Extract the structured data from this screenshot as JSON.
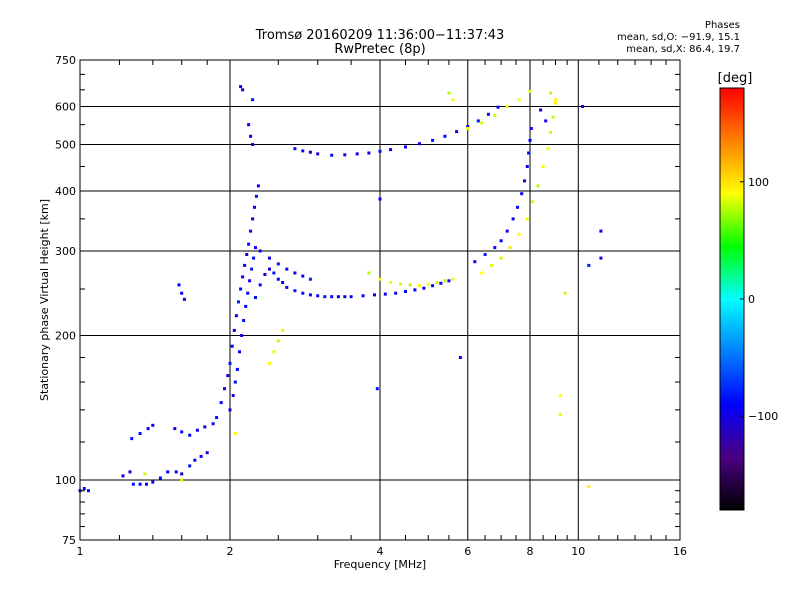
{
  "header": {
    "title": "Tromsø 20160209 11:36:00−11:37:43",
    "subtitle": "RwPretec (8p)"
  },
  "phase_stats": {
    "heading": "Phases",
    "line_o": "mean, sd,O: −91.9, 15.1",
    "line_x": "mean, sd,X:  86.4, 19.7"
  },
  "colorbar": {
    "label": "[deg]",
    "ticks": [
      "100",
      "0",
      "−100"
    ]
  },
  "chart_data": {
    "type": "scatter",
    "title": "Tromsø 20160209 11:36:00−11:37:43",
    "subtitle": "RwPretec (8p)",
    "xlabel": "Frequency [MHz]",
    "ylabel": "Stationary phase Virtual Height [km]",
    "x_scale": "log",
    "y_scale": "log",
    "xlim": [
      1,
      16
    ],
    "ylim": [
      75,
      750
    ],
    "x_ticks": [
      1,
      2,
      4,
      6,
      8,
      10,
      16
    ],
    "x_tick_labels": [
      "1",
      "2",
      "4",
      "6",
      "8",
      "10",
      "16"
    ],
    "y_ticks": [
      75,
      100,
      200,
      300,
      400,
      500,
      600,
      750
    ],
    "y_tick_labels": [
      "75",
      "100",
      "200",
      "300",
      "400",
      "500",
      "600",
      "750"
    ],
    "grid": true,
    "color_scale": {
      "quantity": "phase",
      "unit": "deg",
      "range": [
        -180,
        180
      ],
      "tick_values": [
        100,
        0,
        -100
      ],
      "stops": [
        "#000000",
        "#4b0082",
        "#0000ff",
        "#0080ff",
        "#00ffff",
        "#00ff00",
        "#ffff00",
        "#ff8000",
        "#ff0000"
      ]
    },
    "series": [
      {
        "mode": "O",
        "color_phase": -92,
        "points": [
          [
            1.0,
            95
          ],
          [
            1.02,
            96
          ],
          [
            1.04,
            95
          ],
          [
            1.22,
            102
          ],
          [
            1.26,
            104
          ],
          [
            1.28,
            98
          ],
          [
            1.32,
            98
          ],
          [
            1.36,
            98
          ],
          [
            1.4,
            99
          ],
          [
            1.45,
            101
          ],
          [
            1.5,
            104
          ],
          [
            1.56,
            104
          ],
          [
            1.6,
            103
          ],
          [
            1.66,
            107
          ],
          [
            1.7,
            110
          ],
          [
            1.75,
            112
          ],
          [
            1.8,
            114
          ],
          [
            1.27,
            122
          ],
          [
            1.32,
            125
          ],
          [
            1.37,
            128
          ],
          [
            1.4,
            130
          ],
          [
            1.55,
            128
          ],
          [
            1.6,
            126
          ],
          [
            1.66,
            124
          ],
          [
            1.72,
            127
          ],
          [
            1.78,
            129
          ],
          [
            1.85,
            131
          ],
          [
            1.58,
            255
          ],
          [
            1.6,
            245
          ],
          [
            1.62,
            238
          ],
          [
            1.88,
            135
          ],
          [
            1.92,
            145
          ],
          [
            1.95,
            155
          ],
          [
            1.98,
            165
          ],
          [
            2.0,
            175
          ],
          [
            2.02,
            190
          ],
          [
            2.04,
            205
          ],
          [
            2.06,
            220
          ],
          [
            2.08,
            235
          ],
          [
            2.1,
            250
          ],
          [
            2.12,
            265
          ],
          [
            2.14,
            280
          ],
          [
            2.16,
            295
          ],
          [
            2.18,
            310
          ],
          [
            2.2,
            330
          ],
          [
            2.22,
            350
          ],
          [
            2.24,
            370
          ],
          [
            2.26,
            390
          ],
          [
            2.28,
            410
          ],
          [
            2.0,
            140
          ],
          [
            2.03,
            150
          ],
          [
            2.05,
            160
          ],
          [
            2.07,
            170
          ],
          [
            2.09,
            185
          ],
          [
            2.11,
            200
          ],
          [
            2.13,
            215
          ],
          [
            2.15,
            230
          ],
          [
            2.17,
            245
          ],
          [
            2.19,
            260
          ],
          [
            2.21,
            275
          ],
          [
            2.23,
            290
          ],
          [
            2.25,
            305
          ],
          [
            2.1,
            660
          ],
          [
            2.12,
            650
          ],
          [
            2.22,
            620
          ],
          [
            2.18,
            550
          ],
          [
            2.2,
            520
          ],
          [
            2.22,
            500
          ],
          [
            2.25,
            240
          ],
          [
            2.3,
            255
          ],
          [
            2.35,
            268
          ],
          [
            2.4,
            275
          ],
          [
            2.45,
            270
          ],
          [
            2.5,
            262
          ],
          [
            2.55,
            258
          ],
          [
            2.6,
            252
          ],
          [
            2.7,
            248
          ],
          [
            2.8,
            245
          ],
          [
            2.9,
            243
          ],
          [
            3.0,
            242
          ],
          [
            3.1,
            241
          ],
          [
            3.2,
            241
          ],
          [
            3.3,
            241
          ],
          [
            3.4,
            241
          ],
          [
            3.5,
            241
          ],
          [
            3.7,
            242
          ],
          [
            3.9,
            243
          ],
          [
            4.1,
            244
          ],
          [
            4.3,
            245
          ],
          [
            4.5,
            247
          ],
          [
            4.7,
            249
          ],
          [
            4.9,
            251
          ],
          [
            5.1,
            254
          ],
          [
            5.3,
            257
          ],
          [
            5.5,
            260
          ],
          [
            2.3,
            300
          ],
          [
            2.4,
            290
          ],
          [
            2.5,
            282
          ],
          [
            2.6,
            275
          ],
          [
            2.7,
            270
          ],
          [
            2.8,
            266
          ],
          [
            2.9,
            262
          ],
          [
            2.7,
            490
          ],
          [
            2.8,
            485
          ],
          [
            2.9,
            482
          ],
          [
            3.0,
            478
          ],
          [
            3.2,
            475
          ],
          [
            3.4,
            476
          ],
          [
            3.6,
            478
          ],
          [
            3.8,
            480
          ],
          [
            4.0,
            484
          ],
          [
            4.2,
            488
          ],
          [
            4.5,
            494
          ],
          [
            4.8,
            502
          ],
          [
            5.1,
            510
          ],
          [
            5.4,
            520
          ],
          [
            5.7,
            532
          ],
          [
            6.0,
            545
          ],
          [
            6.3,
            560
          ],
          [
            6.6,
            578
          ],
          [
            6.9,
            598
          ],
          [
            6.2,
            285
          ],
          [
            6.5,
            295
          ],
          [
            6.8,
            305
          ],
          [
            7.0,
            315
          ],
          [
            7.2,
            330
          ],
          [
            7.4,
            350
          ],
          [
            7.55,
            370
          ],
          [
            7.7,
            395
          ],
          [
            7.8,
            420
          ],
          [
            7.9,
            450
          ],
          [
            7.95,
            480
          ],
          [
            8.0,
            510
          ],
          [
            8.05,
            540
          ],
          [
            4.0,
            385
          ],
          [
            3.95,
            155
          ],
          [
            5.8,
            180
          ],
          [
            11.1,
            330
          ],
          [
            11.1,
            290
          ],
          [
            10.5,
            280
          ],
          [
            10.2,
            600
          ],
          [
            8.4,
            590
          ],
          [
            8.6,
            560
          ]
        ]
      },
      {
        "mode": "X",
        "color_phase": 86,
        "points": [
          [
            3.8,
            270
          ],
          [
            4.0,
            262
          ],
          [
            4.2,
            258
          ],
          [
            4.4,
            256
          ],
          [
            4.6,
            255
          ],
          [
            4.8,
            254
          ],
          [
            5.0,
            256
          ],
          [
            5.2,
            258
          ],
          [
            5.4,
            260
          ],
          [
            5.6,
            262
          ],
          [
            2.4,
            175
          ],
          [
            2.45,
            185
          ],
          [
            2.5,
            195
          ],
          [
            2.55,
            205
          ],
          [
            6.4,
            270
          ],
          [
            6.7,
            280
          ],
          [
            7.0,
            290
          ],
          [
            7.3,
            305
          ],
          [
            7.6,
            325
          ],
          [
            7.9,
            350
          ],
          [
            8.1,
            380
          ],
          [
            8.3,
            410
          ],
          [
            8.5,
            450
          ],
          [
            8.7,
            490
          ],
          [
            8.8,
            530
          ],
          [
            8.9,
            570
          ],
          [
            9.0,
            620
          ],
          [
            6.0,
            540
          ],
          [
            6.4,
            555
          ],
          [
            6.8,
            575
          ],
          [
            7.2,
            600
          ],
          [
            7.6,
            620
          ],
          [
            8.0,
            645
          ],
          [
            8.8,
            640
          ],
          [
            9.0,
            610
          ],
          [
            9.2,
            150
          ],
          [
            9.2,
            137
          ],
          [
            9.4,
            245
          ],
          [
            10.5,
            97
          ],
          [
            2.05,
            125
          ],
          [
            1.6,
            100
          ],
          [
            1.35,
            103
          ],
          [
            5.5,
            640
          ],
          [
            5.6,
            620
          ]
        ]
      }
    ]
  }
}
